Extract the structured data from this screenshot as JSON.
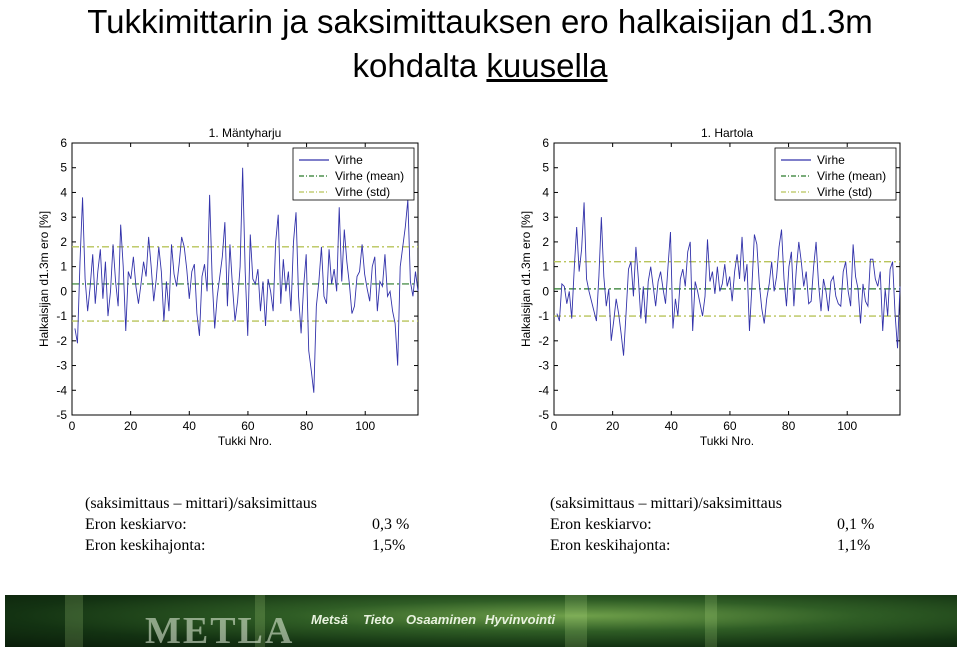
{
  "slide": {
    "title_line1": "Tukkimittarin ja saksimittauksen ero halkaisijan d1.3m",
    "title_line2_prefix": "kohdalta ",
    "title_line2_underlined": "kuusella"
  },
  "chart_data": [
    {
      "type": "line",
      "title": "1. Mäntyharju",
      "xlabel": "Tukki Nro.",
      "ylabel": "Halkaisijan d1.3m ero [%]",
      "xlim": [
        0,
        118
      ],
      "ylim": [
        -5,
        6
      ],
      "xticks": [
        "0",
        "20",
        "40",
        "60",
        "80",
        "100"
      ],
      "yticks": [
        "6",
        "5",
        "4",
        "3",
        "2",
        "1",
        "0",
        "-1",
        "-2",
        "-3",
        "-4",
        "-5"
      ],
      "legend": [
        "Virhe",
        "Virhe (mean)",
        "Virhe (std)"
      ],
      "legend_position": "top-right",
      "mean": 0.3,
      "std_band": [
        -1.2,
        1.8
      ],
      "x_start": 1,
      "series": [
        {
          "name": "Virhe",
          "color": "#3333aa",
          "values": [
            -1.5,
            -2.1,
            1.2,
            3.8,
            0.5,
            -0.8,
            0.2,
            1.5,
            -0.5,
            0.8,
            1.7,
            -0.3,
            1.2,
            -1.0,
            0.0,
            1.9,
            0.4,
            -0.6,
            2.7,
            1.0,
            -1.6,
            0.8,
            0.5,
            1.4,
            0.2,
            -0.5,
            0.3,
            1.2,
            0.6,
            2.2,
            1.0,
            -0.4,
            0.5,
            1.8,
            0.8,
            -1.2,
            0.4,
            -0.8,
            1.9,
            0.7,
            0.2,
            1.1,
            2.2,
            1.8,
            0.9,
            -0.3,
            0.8,
            1.1,
            -0.9,
            -1.8,
            0.6,
            1.1,
            0.0,
            3.9,
            0.5,
            -1.5,
            -0.2,
            0.6,
            1.4,
            2.8,
            -0.6,
            1.9,
            0.2,
            -1.2,
            -0.4,
            1.0,
            5.0,
            0.8,
            -1.8,
            2.3,
            0.5,
            0.3,
            0.9,
            -0.8,
            0.4,
            -1.4,
            0.5,
            0.0,
            -0.8,
            2.0,
            3.1,
            -0.5,
            1.3,
            0.0,
            0.8,
            -0.8,
            2.0,
            3.2,
            -0.2,
            -1.7,
            0.2,
            1.5,
            -2.4,
            -3.2,
            -4.1,
            -0.6,
            0.4,
            1.8,
            -0.2,
            -0.5,
            1.7,
            0.3,
            0.9,
            0.0,
            3.4,
            0.4,
            2.5,
            1.2,
            0.3,
            -0.9,
            -0.6,
            0.6,
            0.8,
            1.9,
            0.7,
            0.1,
            -0.4,
            1.0,
            1.4,
            -0.8,
            0.4,
            0.2,
            1.5,
            -0.2,
            0.0,
            -0.8,
            -1.3,
            -3.0,
            1.0,
            1.8,
            2.6,
            3.7,
            0.4,
            -0.2,
            0.8,
            0.0
          ]
        }
      ]
    },
    {
      "type": "line",
      "title": "1. Hartola",
      "xlabel": "Tukki Nro.",
      "ylabel": "Halkaisijan d1.3m ero [%]",
      "xlim": [
        0,
        118
      ],
      "ylim": [
        -5,
        6
      ],
      "xticks": [
        "0",
        "20",
        "40",
        "60",
        "80",
        "100"
      ],
      "yticks": [
        "6",
        "5",
        "4",
        "3",
        "2",
        "1",
        "0",
        "-1",
        "-2",
        "-3",
        "-4",
        "-5"
      ],
      "legend": [
        "Virhe",
        "Virhe (mean)",
        "Virhe (std)"
      ],
      "legend_position": "top-right",
      "mean": 0.1,
      "std_band": [
        -1.0,
        1.2
      ],
      "x_start": 1,
      "series": [
        {
          "name": "Virhe",
          "color": "#3333aa",
          "values": [
            -0.9,
            -1.2,
            0.3,
            0.2,
            -0.5,
            0.0,
            -1.1,
            0.9,
            2.6,
            0.8,
            1.7,
            3.6,
            0.5,
            0.0,
            -0.4,
            -0.8,
            -1.2,
            0.6,
            3.0,
            0.6,
            -0.6,
            0.1,
            -2.0,
            -1.2,
            -0.3,
            -0.9,
            -1.7,
            -2.6,
            -0.9,
            0.9,
            1.2,
            -0.2,
            1.8,
            0.5,
            -1.1,
            0.2,
            -1.3,
            0.4,
            1.0,
            0.2,
            -0.6,
            0.4,
            0.8,
            0.1,
            -0.5,
            1.0,
            2.4,
            -1.5,
            -0.3,
            -1.0,
            0.5,
            0.9,
            0.2,
            1.6,
            2.0,
            -1.6,
            0.4,
            0.0,
            -0.5,
            -1.0,
            -0.2,
            2.1,
            0.4,
            0.8,
            -0.1,
            1.0,
            0.0,
            0.3,
            1.1,
            0.2,
            0.6,
            -0.4,
            0.8,
            1.5,
            0.5,
            2.2,
            0.4,
            1.1,
            -1.6,
            0.2,
            2.3,
            1.9,
            0.3,
            -0.7,
            -1.3,
            -0.3,
            0.3,
            1.2,
            0.0,
            0.6,
            1.8,
            2.5,
            0.5,
            -0.6,
            1.0,
            1.6,
            -0.6,
            0.9,
            2.0,
            1.2,
            0.2,
            0.8,
            -0.5,
            -0.4,
            1.0,
            2.0,
            0.3,
            -0.8,
            0.5,
            0.0,
            -0.8,
            0.4,
            0.6,
            -0.2,
            -0.5,
            -0.6,
            0.8,
            1.2,
            0.0,
            -0.6,
            1.9,
            0.6,
            0.1,
            -1.3,
            0.3,
            -0.4,
            -0.6,
            1.3,
            1.3,
            0.5,
            0.2,
            0.8,
            -1.6,
            0.1,
            -1.0,
            0.9,
            1.2,
            -0.9,
            -2.3,
            0.2
          ]
        }
      ]
    }
  ],
  "stats_left": {
    "heading": "(saksimittaus – mittari)/saksimittaus",
    "mean_label": "Eron keskiarvo:",
    "mean_value": "0,3 %",
    "std_label": "Eron keskihajonta:",
    "std_value": "1,5%"
  },
  "stats_right": {
    "heading": "(saksimittaus – mittari)/saksimittaus",
    "mean_label": "Eron keskiarvo:",
    "mean_value": "0,1 %",
    "std_label": "Eron keskihajonta:",
    "std_value": "1,1%"
  },
  "footer": {
    "logo": "METLA",
    "tags": [
      "Metsä",
      "Tieto",
      "Osaaminen",
      "Hyvinvointi"
    ]
  },
  "colors": {
    "line": "#3333aa",
    "mean_line": "#2a7a2a",
    "std_line": "#b8c45a"
  }
}
